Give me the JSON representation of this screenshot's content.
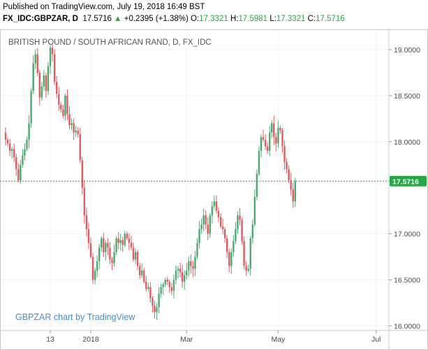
{
  "header": {
    "published": "Published on TradingView.com, July 19, 2018 16:49 BST",
    "symbol": "FX_IDC:GBPZAR, D",
    "last": "17.5716",
    "up_arrow": "▲",
    "change": "+0.2395 (+1.38%)",
    "o_label": "O:",
    "o_value": "17.3321",
    "h_label": "H:",
    "h_value": "17.5981",
    "l_label": "L:",
    "l_value": "17.3321",
    "c_label": "C:",
    "c_value": "17.5716"
  },
  "colors": {
    "up": "#4aaa6e",
    "down": "#e05a5e",
    "last_line": "#27a644",
    "watermark": "#3f8fd6"
  },
  "chart_data": {
    "type": "candlestick",
    "title": "BRITISH POUND / SOUTH AFRICAN RAND, D, FX_IDC",
    "watermark": "GBPZAR chart by TradingView",
    "ylim": [
      15.95,
      19.22
    ],
    "y_ticks": [
      "19.0000",
      "18.5000",
      "18.0000",
      "17.0000",
      "16.5000",
      "16.0000"
    ],
    "x_ticks": [
      {
        "label": "13",
        "index": 21
      },
      {
        "label": "2018",
        "index": 40
      },
      {
        "label": "Mar",
        "index": 85
      },
      {
        "label": "May",
        "index": 128
      },
      {
        "label": "Jul",
        "index": 174
      }
    ],
    "last_price": "17.5716",
    "last_price_value": 17.5716,
    "closes": [
      18.02,
      17.98,
      17.9,
      17.92,
      17.83,
      17.7,
      17.58,
      17.75,
      17.85,
      17.92,
      18.02,
      18.2,
      18.55,
      18.85,
      18.95,
      18.75,
      18.48,
      18.6,
      18.72,
      18.55,
      18.82,
      19.02,
      18.95,
      18.65,
      18.52,
      18.4,
      18.35,
      18.28,
      18.5,
      18.3,
      18.18,
      18.2,
      18.1,
      18.12,
      18.08,
      17.8,
      17.5,
      17.2,
      17.05,
      16.9,
      16.75,
      16.5,
      16.6,
      16.7,
      16.85,
      16.95,
      16.8,
      16.9,
      16.85,
      16.72,
      16.68,
      16.8,
      16.95,
      16.9,
      16.93,
      16.88,
      17.0,
      16.95,
      16.9,
      16.85,
      16.72,
      16.8,
      16.65,
      16.55,
      16.6,
      16.48,
      16.4,
      16.42,
      16.3,
      16.22,
      16.15,
      16.2,
      16.35,
      16.42,
      16.45,
      16.5,
      16.48,
      16.42,
      16.38,
      16.5,
      16.6,
      16.62,
      16.58,
      16.48,
      16.55,
      16.6,
      16.7,
      16.65,
      16.62,
      16.75,
      16.9,
      17.05,
      17.1,
      17.2,
      17.1,
      17.0,
      17.2,
      17.3,
      17.35,
      17.25,
      17.18,
      17.08,
      17.05,
      16.95,
      16.8,
      16.65,
      16.8,
      16.92,
      17.05,
      17.2,
      17.15,
      16.92,
      16.65,
      16.6,
      16.62,
      16.95,
      17.1,
      17.4,
      17.65,
      17.9,
      18.05,
      18.02,
      17.95,
      17.9,
      18.1,
      18.2,
      18.05,
      17.98,
      18.15,
      18.12,
      17.95,
      17.78,
      17.7,
      17.58,
      17.48,
      17.35,
      17.57
    ]
  }
}
